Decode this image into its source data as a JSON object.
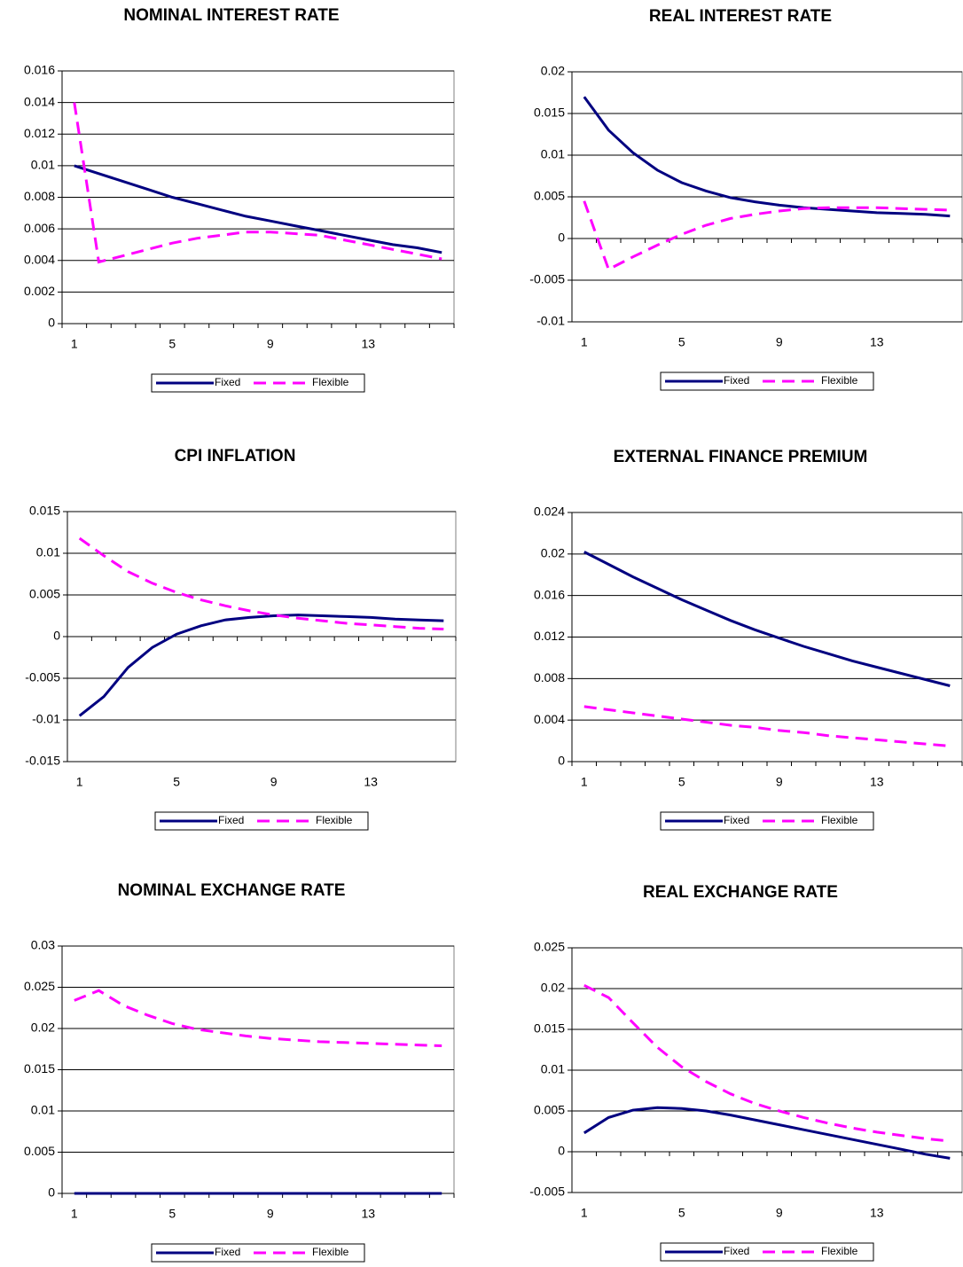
{
  "chart_data": [
    {
      "type": "line",
      "title": "NOMINAL INTEREST RATE",
      "categories": [
        1,
        null,
        null,
        null,
        5,
        null,
        null,
        null,
        9,
        null,
        null,
        null,
        13,
        null,
        null,
        null
      ],
      "series": [
        {
          "name": "Fixed",
          "color": "#000080",
          "values": [
            0.01,
            0.0095,
            0.009,
            0.0085,
            0.008,
            0.0076,
            0.0072,
            0.0068,
            0.0065,
            0.0062,
            0.0059,
            0.0056,
            0.0053,
            0.005,
            0.0048,
            0.0045
          ]
        },
        {
          "name": "Flexible",
          "color": "#ff00ff",
          "values": [
            0.014,
            0.0039,
            0.0043,
            0.0047,
            0.0051,
            0.0054,
            0.0056,
            0.0058,
            0.0058,
            0.0057,
            0.0056,
            0.0053,
            0.005,
            0.0047,
            0.0044,
            0.0041
          ]
        }
      ],
      "ylim": [
        0,
        0.016
      ],
      "yticks": [
        0,
        0.002,
        0.004,
        0.006,
        0.008,
        0.01,
        0.012,
        0.014,
        0.016
      ],
      "grid": true,
      "legend": "bottom"
    },
    {
      "type": "line",
      "title": "REAL INTEREST RATE",
      "categories": [
        1,
        null,
        null,
        null,
        5,
        null,
        null,
        null,
        9,
        null,
        null,
        null,
        13,
        null,
        null,
        null
      ],
      "series": [
        {
          "name": "Fixed",
          "color": "#000080",
          "values": [
            0.017,
            0.013,
            0.0103,
            0.0082,
            0.0067,
            0.0057,
            0.0049,
            0.0044,
            0.004,
            0.0037,
            0.0035,
            0.0033,
            0.0031,
            0.003,
            0.0029,
            0.0027
          ]
        },
        {
          "name": "Flexible",
          "color": "#ff00ff",
          "values": [
            0.0045,
            -0.0037,
            -0.0022,
            -0.0008,
            0.0005,
            0.0016,
            0.0024,
            0.0029,
            0.0033,
            0.0036,
            0.0037,
            0.0037,
            0.0037,
            0.0036,
            0.0035,
            0.0034
          ]
        }
      ],
      "ylim": [
        -0.01,
        0.02
      ],
      "yticks": [
        -0.01,
        -0.005,
        0,
        0.005,
        0.01,
        0.015,
        0.02
      ],
      "grid": true,
      "legend": "bottom"
    },
    {
      "type": "line",
      "title": "CPI INFLATION",
      "categories": [
        1,
        null,
        null,
        null,
        5,
        null,
        null,
        null,
        9,
        null,
        null,
        null,
        13,
        null,
        null,
        null
      ],
      "series": [
        {
          "name": "Fixed",
          "color": "#000080",
          "values": [
            -0.0095,
            -0.0072,
            -0.0037,
            -0.0013,
            0.0003,
            0.0013,
            0.002,
            0.0023,
            0.0025,
            0.0026,
            0.0025,
            0.0024,
            0.0023,
            0.0021,
            0.002,
            0.0019
          ]
        },
        {
          "name": "Flexible",
          "color": "#ff00ff",
          "values": [
            0.0118,
            0.0097,
            0.0078,
            0.0064,
            0.0053,
            0.0044,
            0.0037,
            0.0031,
            0.0026,
            0.0022,
            0.0019,
            0.0016,
            0.0014,
            0.0012,
            0.001,
            0.0009
          ]
        }
      ],
      "ylim": [
        -0.015,
        0.015
      ],
      "yticks": [
        -0.015,
        -0.01,
        -0.005,
        0,
        0.005,
        0.01,
        0.015
      ],
      "grid": true,
      "legend": "bottom"
    },
    {
      "type": "line",
      "title": "EXTERNAL FINANCE PREMIUM",
      "categories": [
        1,
        null,
        null,
        null,
        5,
        null,
        null,
        null,
        9,
        null,
        null,
        null,
        13,
        null,
        null,
        null
      ],
      "series": [
        {
          "name": "Fixed",
          "color": "#000080",
          "values": [
            0.0202,
            0.019,
            0.0178,
            0.0167,
            0.0156,
            0.0146,
            0.0136,
            0.0127,
            0.0119,
            0.0111,
            0.0104,
            0.0097,
            0.0091,
            0.0085,
            0.0079,
            0.0073
          ]
        },
        {
          "name": "Flexible",
          "color": "#ff00ff",
          "values": [
            0.0053,
            0.005,
            0.0047,
            0.0044,
            0.0041,
            0.0038,
            0.0035,
            0.0033,
            0.003,
            0.0028,
            0.0025,
            0.0023,
            0.0021,
            0.0019,
            0.0017,
            0.0015
          ]
        }
      ],
      "ylim": [
        0,
        0.024
      ],
      "yticks": [
        0,
        0.004,
        0.008,
        0.012,
        0.016,
        0.02,
        0.024
      ],
      "grid": true,
      "legend": "bottom"
    },
    {
      "type": "line",
      "title": "NOMINAL EXCHANGE RATE",
      "categories": [
        1,
        null,
        null,
        null,
        5,
        null,
        null,
        null,
        9,
        null,
        null,
        null,
        13,
        null,
        null,
        null
      ],
      "series": [
        {
          "name": "Fixed",
          "color": "#000080",
          "values": [
            0,
            0,
            0,
            0,
            0,
            0,
            0,
            0,
            0,
            0,
            0,
            0,
            0,
            0,
            0,
            0
          ]
        },
        {
          "name": "Flexible",
          "color": "#ff00ff",
          "values": [
            0.0234,
            0.0246,
            0.0228,
            0.0216,
            0.0206,
            0.0199,
            0.0195,
            0.0191,
            0.0188,
            0.0186,
            0.0184,
            0.0183,
            0.0182,
            0.0181,
            0.018,
            0.0179
          ]
        }
      ],
      "ylim": [
        0,
        0.03
      ],
      "yticks": [
        0,
        0.005,
        0.01,
        0.015,
        0.02,
        0.025,
        0.03
      ],
      "grid": true,
      "legend": "bottom"
    },
    {
      "type": "line",
      "title": "REAL EXCHANGE RATE",
      "categories": [
        1,
        null,
        null,
        null,
        5,
        null,
        null,
        null,
        9,
        null,
        null,
        null,
        13,
        null,
        null,
        null
      ],
      "series": [
        {
          "name": "Fixed",
          "color": "#000080",
          "values": [
            0.0023,
            0.0042,
            0.0051,
            0.0054,
            0.0053,
            0.005,
            0.0045,
            0.0039,
            0.0033,
            0.0027,
            0.0021,
            0.0015,
            0.0009,
            0.0003,
            -0.0003,
            -0.0008
          ]
        },
        {
          "name": "Flexible",
          "color": "#ff00ff",
          "values": [
            0.0204,
            0.0189,
            0.0158,
            0.0128,
            0.0104,
            0.0086,
            0.0071,
            0.0059,
            0.005,
            0.0042,
            0.0035,
            0.0029,
            0.0024,
            0.002,
            0.0016,
            0.0013
          ]
        }
      ],
      "ylim": [
        -0.005,
        0.025
      ],
      "yticks": [
        -0.005,
        0,
        0.005,
        0.01,
        0.015,
        0.02,
        0.025
      ],
      "grid": true,
      "legend": "bottom"
    }
  ]
}
